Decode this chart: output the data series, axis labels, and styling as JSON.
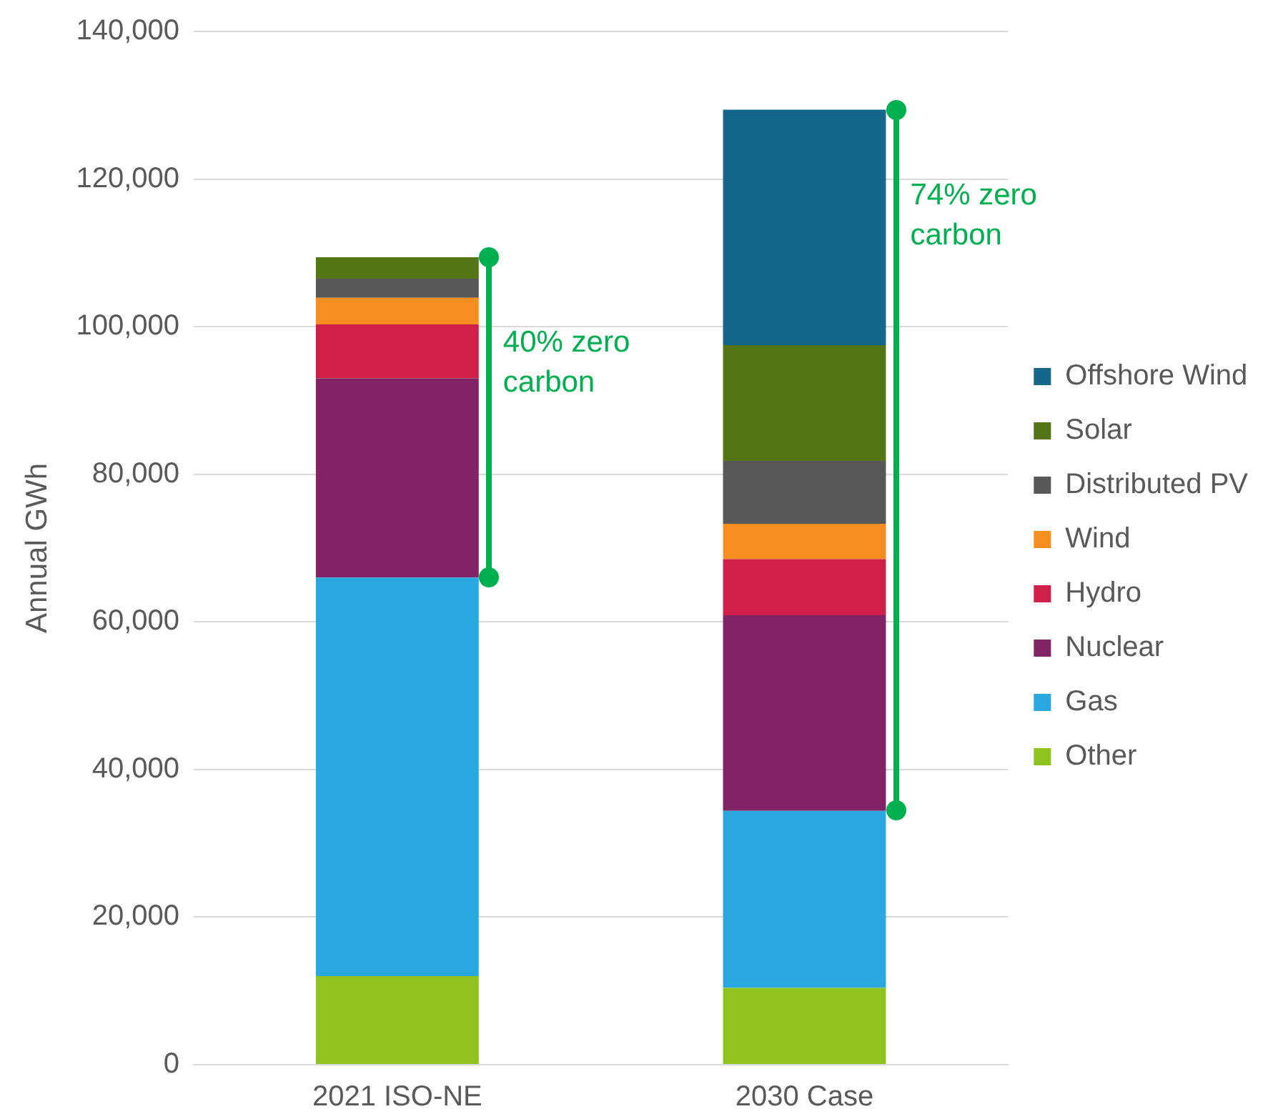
{
  "chart_data": {
    "type": "bar",
    "stacked": true,
    "ylabel": "Annual GWh",
    "categories": [
      "2021 ISO-NE",
      "2030 Case"
    ],
    "series": [
      {
        "name": "Other",
        "color": "#8dc21f",
        "values": [
          12000,
          10400
        ]
      },
      {
        "name": "Gas",
        "color": "#29a8e0",
        "values": [
          54000,
          24000
        ]
      },
      {
        "name": "Nuclear",
        "color": "#822365",
        "values": [
          27000,
          26500
        ]
      },
      {
        "name": "Hydro",
        "color": "#d01f48",
        "values": [
          7300,
          7600
        ]
      },
      {
        "name": "Wind",
        "color": "#f68d21",
        "values": [
          3600,
          4800
        ]
      },
      {
        "name": "Distributed PV",
        "color": "#58585a",
        "values": [
          2600,
          8500
        ]
      },
      {
        "name": "Solar",
        "color": "#547515",
        "values": [
          2900,
          15700
        ]
      },
      {
        "name": "Offshore Wind",
        "color": "#15668b",
        "values": [
          0,
          31900
        ]
      }
    ],
    "ylim": [
      0,
      140000
    ],
    "yticks": [
      {
        "value": 0,
        "label": "0"
      },
      {
        "value": 20000,
        "label": "20,000"
      },
      {
        "value": 40000,
        "label": "40,000"
      },
      {
        "value": 60000,
        "label": "60,000"
      },
      {
        "value": 80000,
        "label": "80,000"
      },
      {
        "value": 100000,
        "label": "100,000"
      },
      {
        "value": 120000,
        "label": "120,000"
      },
      {
        "value": 140000,
        "label": "140,000"
      }
    ],
    "grid": "y",
    "legend": "right",
    "annotations": [
      "40% zero carbon",
      "74% zero carbon"
    ]
  }
}
